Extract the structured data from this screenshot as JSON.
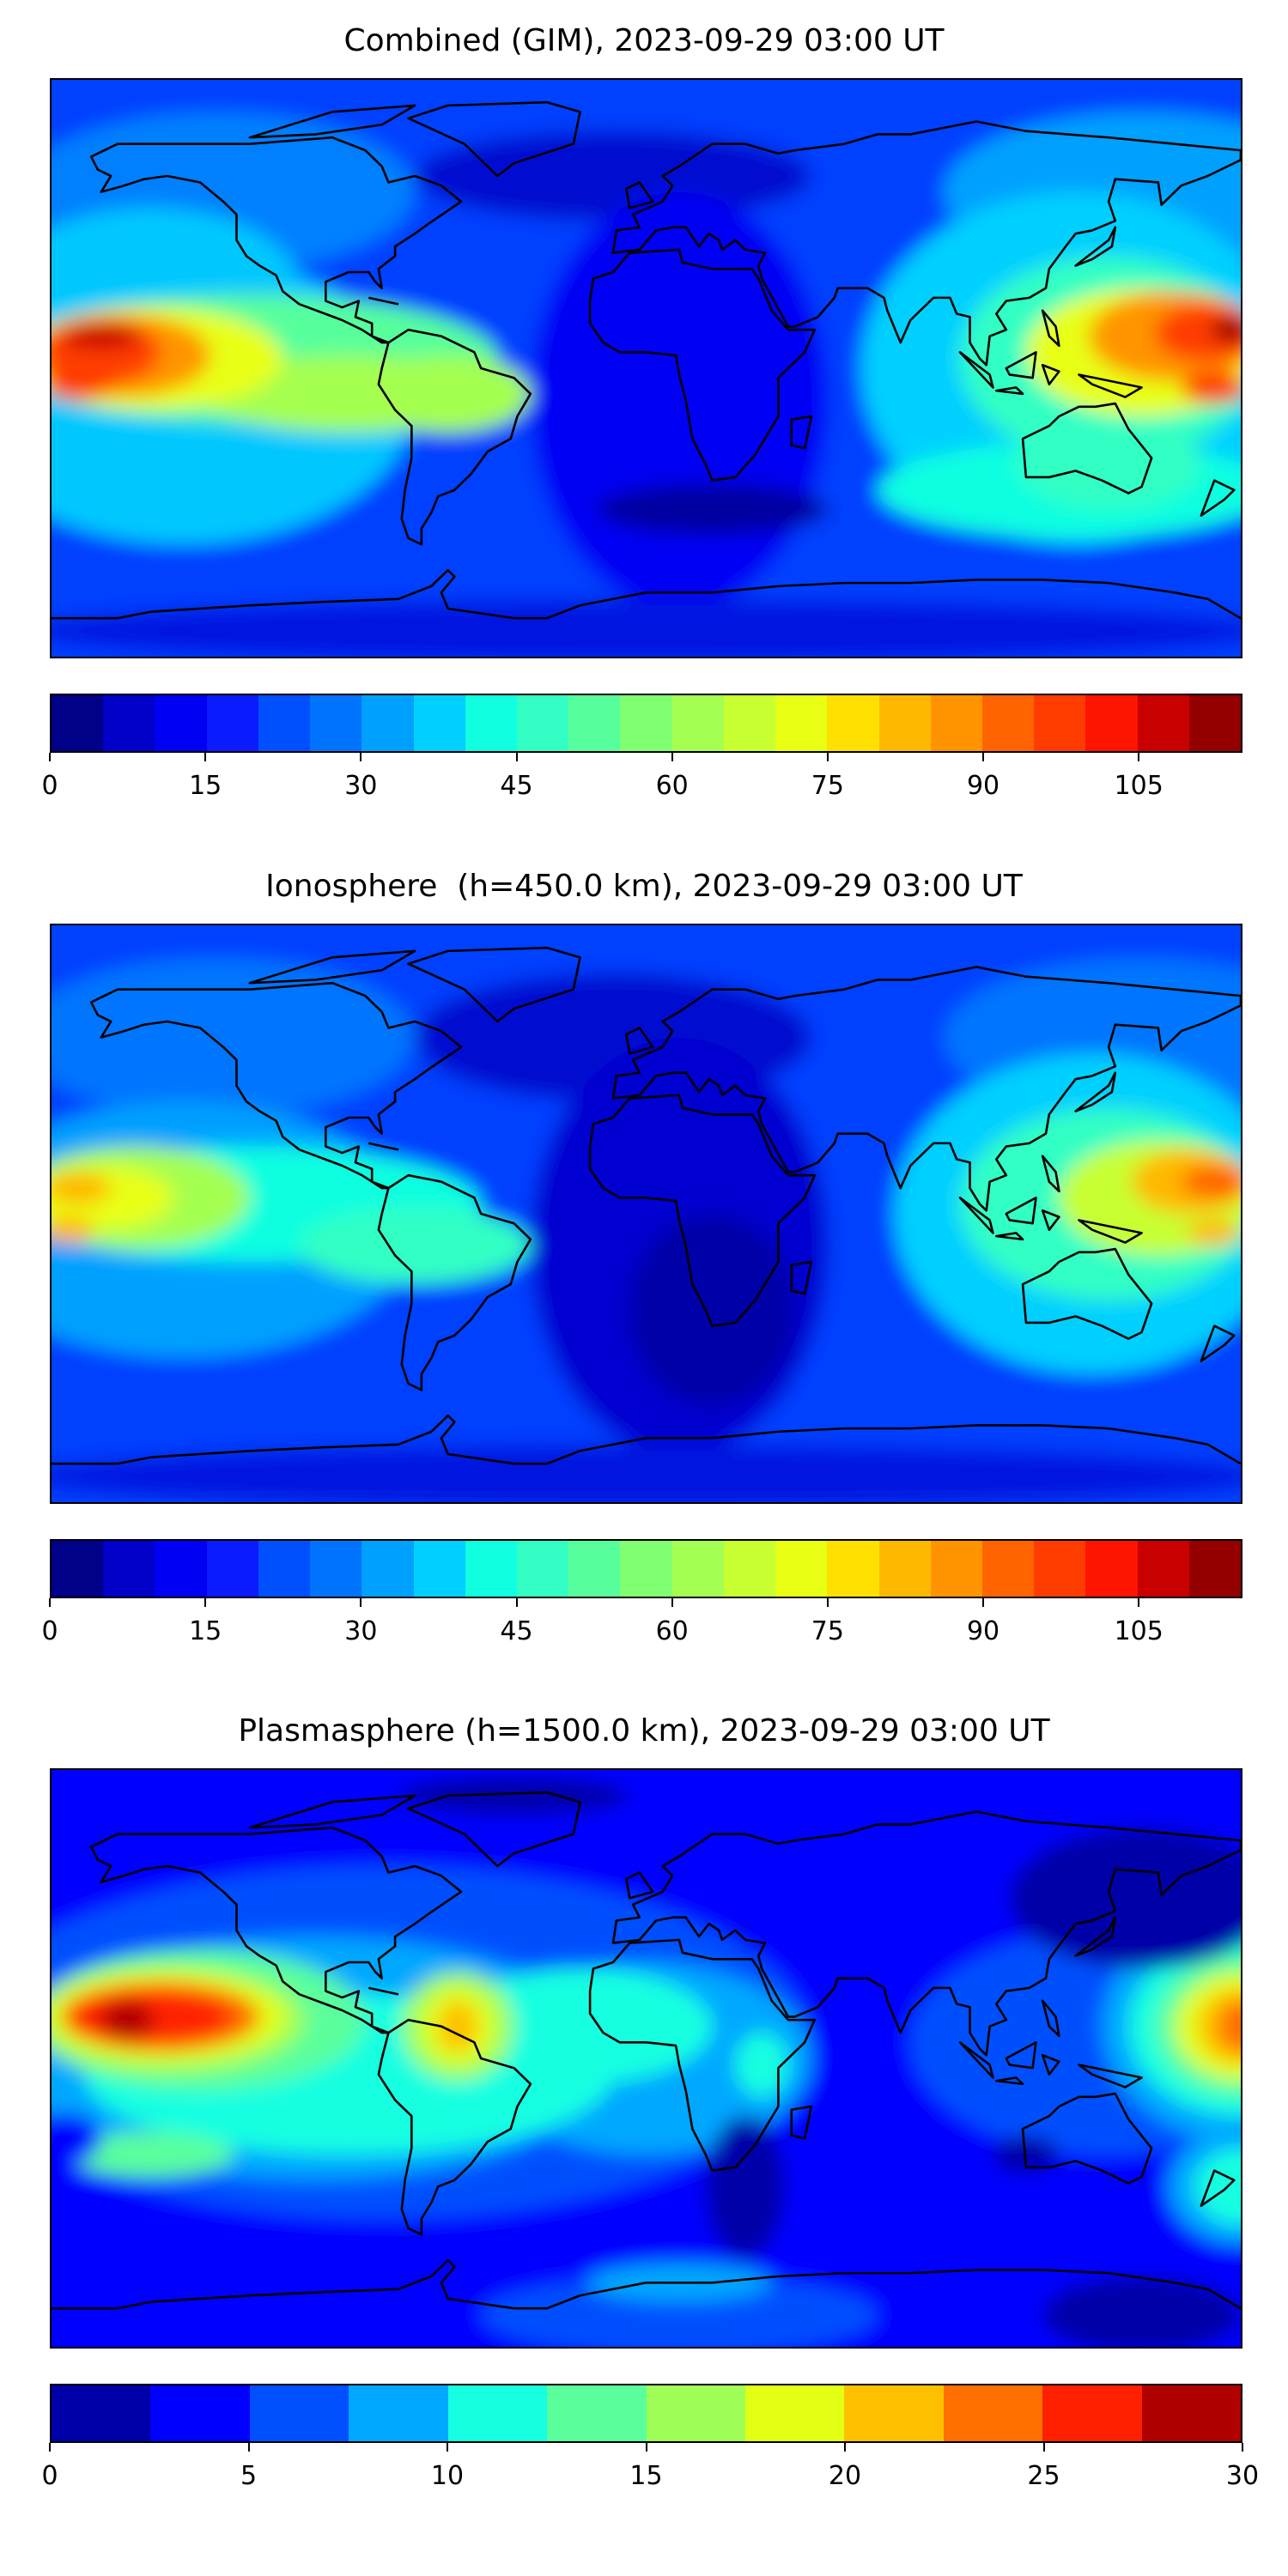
{
  "chart_data": [
    {
      "type": "heatmap",
      "title": "Combined (GIM), 2023-09-29 03:00 UT",
      "projection": "equirectangular world map with coastlines",
      "xlim": [
        -180,
        180
      ],
      "ylim": [
        -90,
        90
      ],
      "colorbar": {
        "vmin": 0,
        "vmax": 115,
        "step": 5,
        "ticks": [
          "0",
          "15",
          "30",
          "45",
          "60",
          "75",
          "90",
          "105"
        ],
        "tick_values": [
          0,
          15,
          30,
          45,
          60,
          75,
          90,
          105
        ],
        "colors": [
          "#000088",
          "#0000c8",
          "#0000f4",
          "#0a1cff",
          "#0050ff",
          "#0074ff",
          "#00a0ff",
          "#00d0ff",
          "#10ffe0",
          "#33ffc4",
          "#57ff9c",
          "#80ff70",
          "#a4ff50",
          "#c8ff30",
          "#e8ff14",
          "#ffe000",
          "#ffb800",
          "#ff9400",
          "#ff6400",
          "#ff3c00",
          "#ff1400",
          "#c80000",
          "#940000"
        ]
      },
      "max_region": "Pacific near dateline, ~0-15N, values >105"
    },
    {
      "type": "heatmap",
      "title": "Ionosphere  (h=450.0 km), 2023-09-29 03:00 UT",
      "projection": "equirectangular world map with coastlines",
      "xlim": [
        -180,
        180
      ],
      "ylim": [
        -90,
        90
      ],
      "colorbar": {
        "vmin": 0,
        "vmax": 115,
        "step": 5,
        "ticks": [
          "0",
          "15",
          "30",
          "45",
          "60",
          "75",
          "90",
          "105"
        ],
        "tick_values": [
          0,
          15,
          30,
          45,
          60,
          75,
          90,
          105
        ],
        "colors": [
          "#000088",
          "#0000c8",
          "#0000f4",
          "#0a1cff",
          "#0050ff",
          "#0074ff",
          "#00a0ff",
          "#00d0ff",
          "#10ffe0",
          "#33ffc4",
          "#57ff9c",
          "#80ff70",
          "#a4ff50",
          "#c8ff30",
          "#e8ff14",
          "#ffe000",
          "#ffb800",
          "#ff9400",
          "#ff6400",
          "#ff3c00",
          "#ff1400",
          "#c80000",
          "#940000"
        ]
      }
    },
    {
      "type": "heatmap",
      "title": "Plasmasphere (h=1500.0 km), 2023-09-29 03:00 UT",
      "projection": "equirectangular world map with coastlines",
      "xlim": [
        -180,
        180
      ],
      "ylim": [
        -90,
        90
      ],
      "colorbar": {
        "vmin": 0,
        "vmax": 30,
        "step": 2.5,
        "ticks": [
          "0",
          "5",
          "10",
          "15",
          "20",
          "25",
          "30"
        ],
        "tick_values": [
          0,
          5,
          10,
          15,
          20,
          25,
          30
        ],
        "colors": [
          "#0000a8",
          "#0000ff",
          "#0050ff",
          "#00a8ff",
          "#16ffe1",
          "#5aff9c",
          "#a0ff56",
          "#e2ff14",
          "#ffc000",
          "#ff7000",
          "#ff2000",
          "#b00000"
        ]
      }
    }
  ]
}
